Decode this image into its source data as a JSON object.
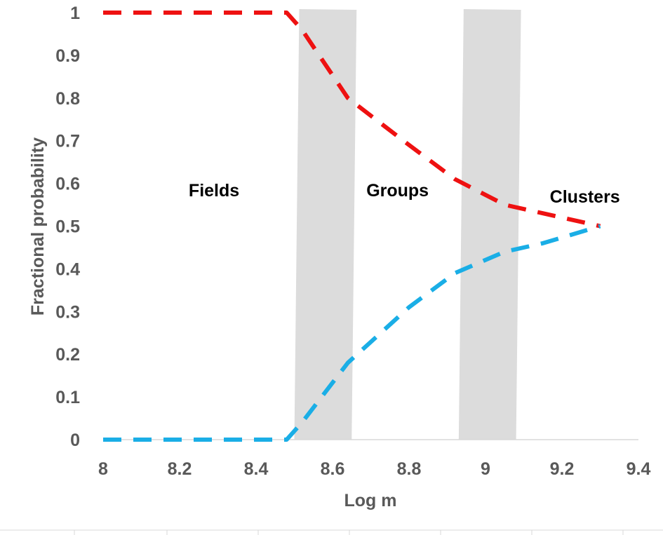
{
  "chart_data": {
    "type": "line",
    "xlabel": "Log m",
    "ylabel": "Fractional probability",
    "xlim": [
      8,
      9.4
    ],
    "ylim": [
      0,
      1
    ],
    "x_ticks": [
      "8",
      "8.2",
      "8.4",
      "8.6",
      "8.8",
      "9",
      "9.2",
      "9.4"
    ],
    "y_ticks": [
      "0",
      "0.1",
      "0.2",
      "0.3",
      "0.4",
      "0.5",
      "0.6",
      "0.7",
      "0.8",
      "0.9",
      "1"
    ],
    "grid": false,
    "series": [
      {
        "color": "#ee1111",
        "line_style": "dashed",
        "x": [
          8.0,
          8.48,
          8.52,
          8.64,
          8.8,
          8.92,
          9.05,
          9.15,
          9.3
        ],
        "y": [
          1.0,
          1.0,
          0.96,
          0.8,
          0.69,
          0.61,
          0.55,
          0.53,
          0.5
        ]
      },
      {
        "color": "#1aaee6",
        "line_style": "dashed",
        "x": [
          8.0,
          8.48,
          8.52,
          8.64,
          8.8,
          8.92,
          9.05,
          9.15,
          9.3
        ],
        "y": [
          0.0,
          0.0,
          0.04,
          0.18,
          0.31,
          0.39,
          0.44,
          0.46,
          0.5
        ]
      }
    ],
    "shaded_bands": [
      {
        "x_range": [
          8.5,
          8.65
        ]
      },
      {
        "x_range": [
          8.93,
          9.08
        ]
      }
    ],
    "annotations": [
      {
        "text": "Fields",
        "x": 8.29,
        "y": 0.57
      },
      {
        "text": "Groups",
        "x": 8.77,
        "y": 0.57
      },
      {
        "text": "Clusters",
        "x": 9.26,
        "y": 0.555
      }
    ]
  }
}
